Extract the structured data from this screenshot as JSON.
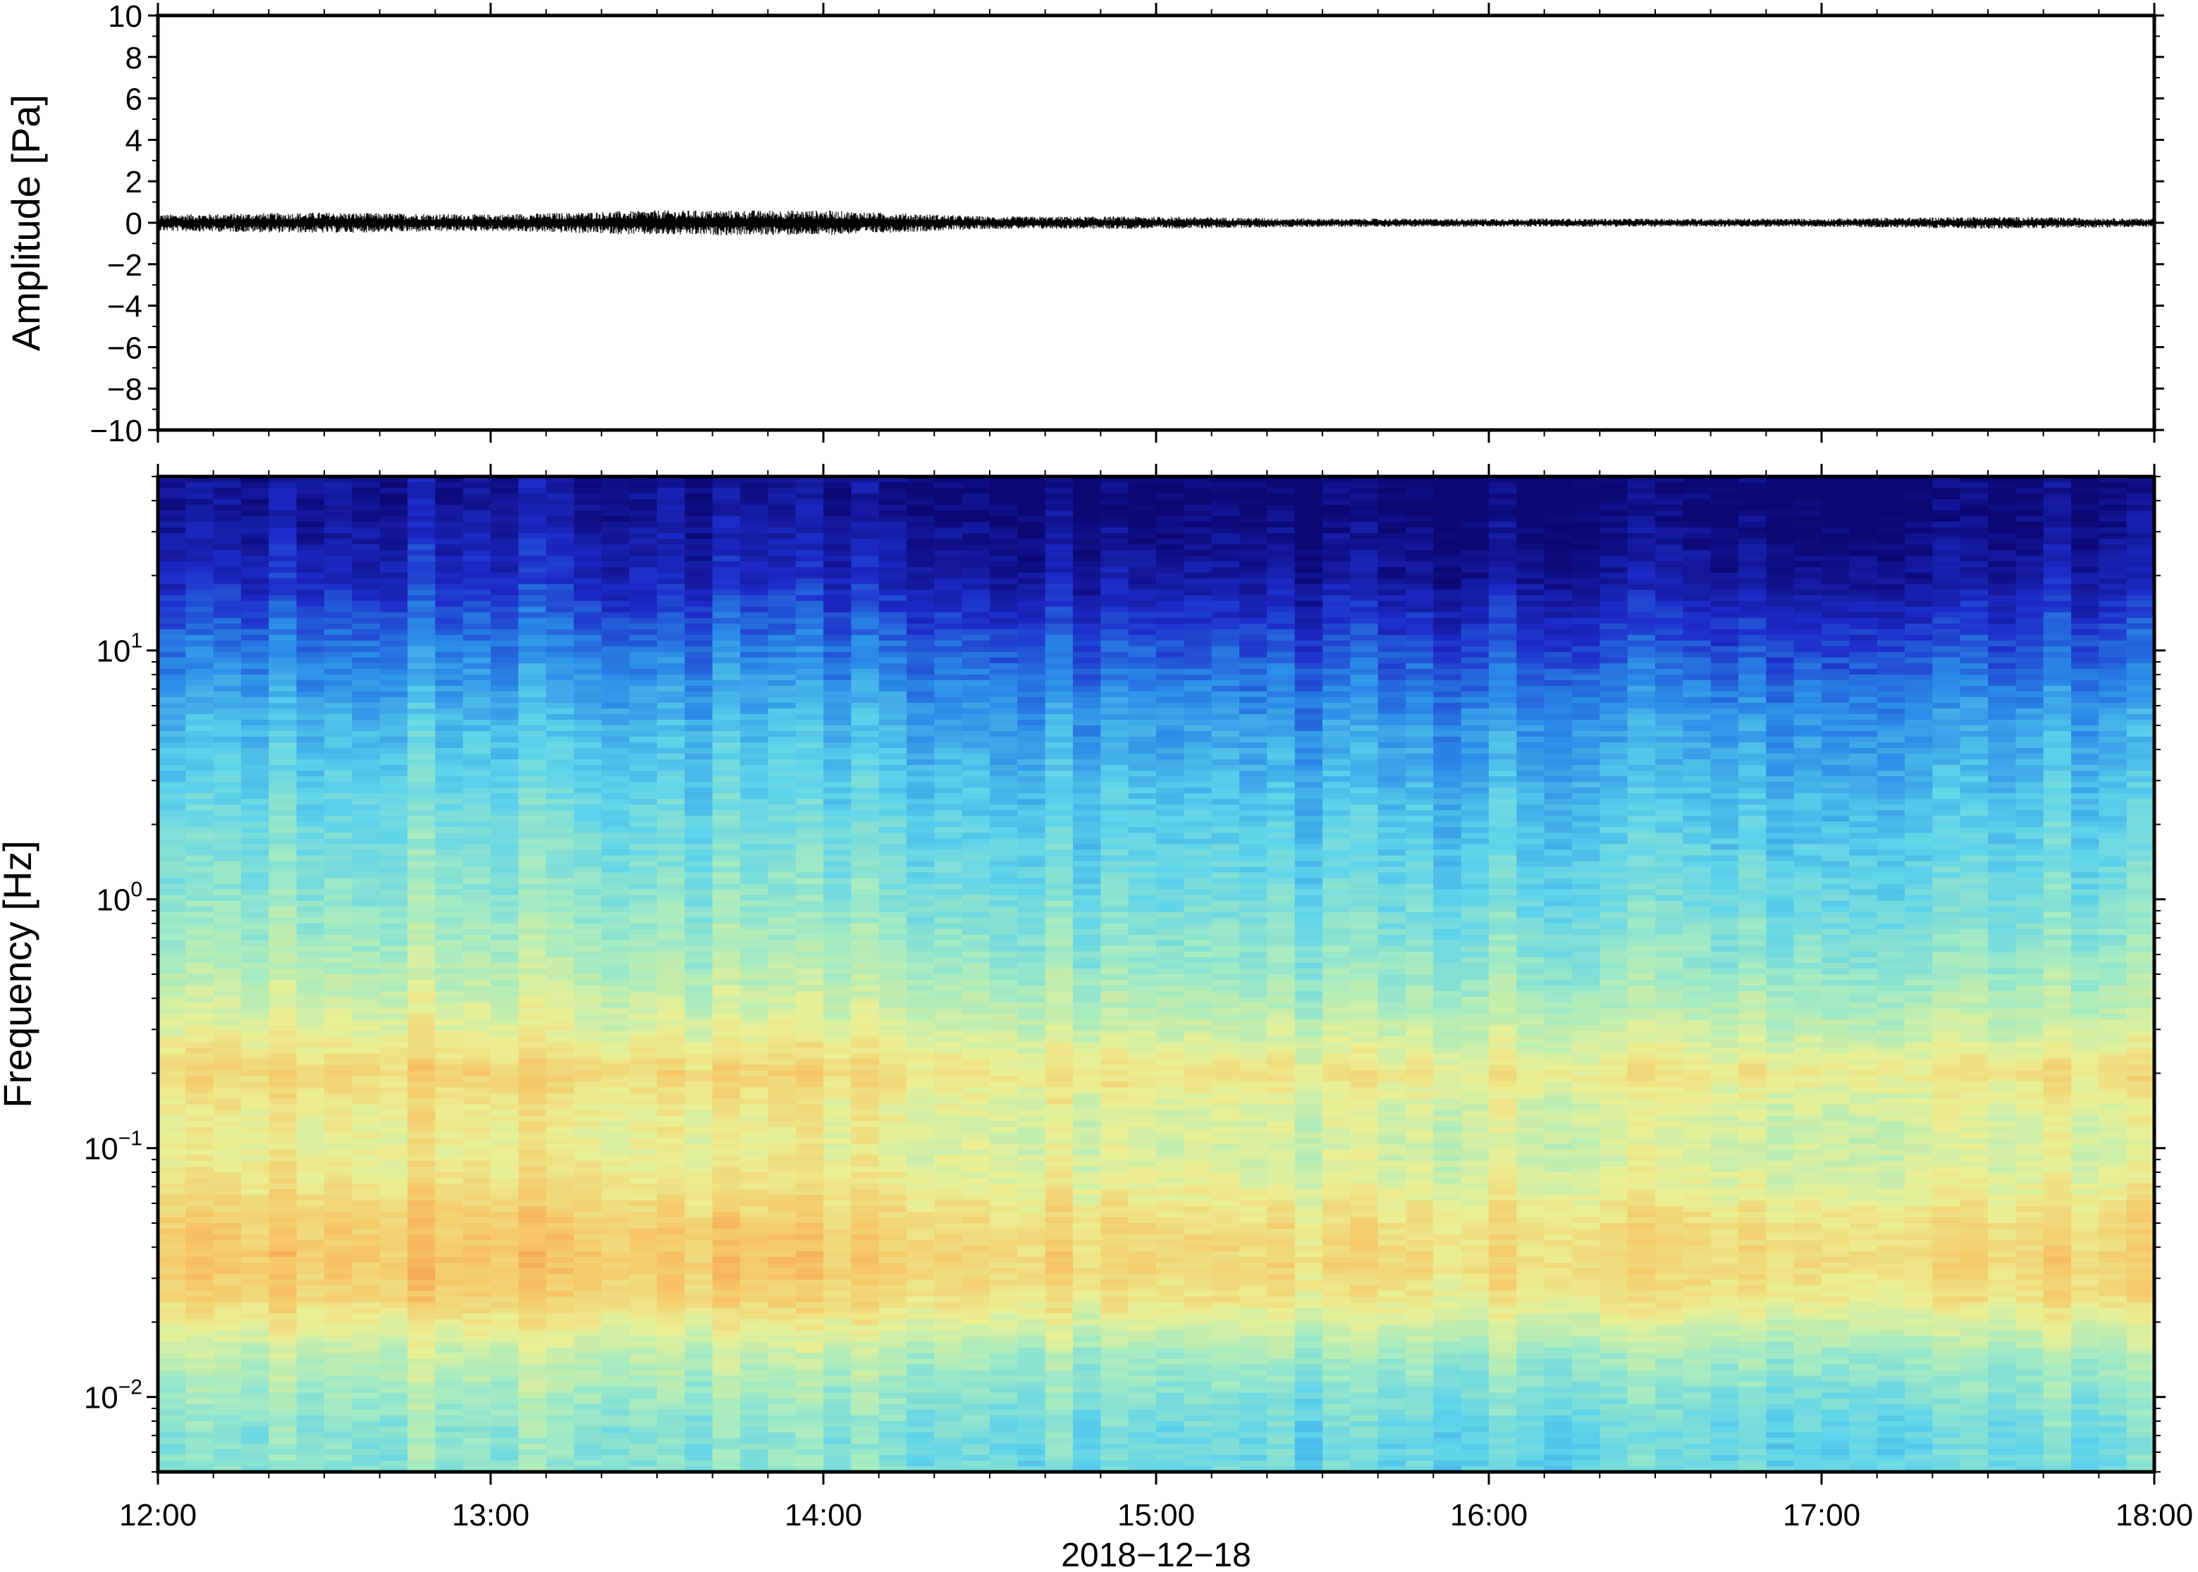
{
  "chart_data": [
    {
      "type": "line",
      "ylabel": "Amplitude [Pa]",
      "ylim": [
        -10,
        10
      ],
      "y_ticks": [
        "10",
        "8",
        "6",
        "4",
        "2",
        "0",
        "−2",
        "−4",
        "−6",
        "−8",
        "−10"
      ],
      "y_tick_values": [
        10,
        8,
        6,
        4,
        2,
        0,
        -2,
        -4,
        -6,
        -8,
        -10
      ],
      "xlim": [
        "2018-12-18 12:00",
        "2018-12-18 18:00"
      ],
      "series": [
        {
          "x": [
            "2018-12-18 12:00",
            "2018-12-18 12:30",
            "2018-12-18 13:00",
            "2018-12-18 13:30",
            "2018-12-18 14:00",
            "2018-12-18 14:30",
            "2018-12-18 15:00",
            "2018-12-18 15:30",
            "2018-12-18 16:00",
            "2018-12-18 16:30",
            "2018-12-18 17:00",
            "2018-12-18 17:30",
            "2018-12-18 18:00"
          ],
          "y_envelope": [
            0.4,
            0.5,
            0.4,
            0.6,
            0.6,
            0.3,
            0.3,
            0.2,
            0.2,
            0.2,
            0.2,
            0.3,
            0.2
          ],
          "color": "#000000"
        }
      ]
    },
    {
      "type": "heatmap",
      "ylabel": "Frequency [Hz]",
      "yscale": "log",
      "ylim": [
        0.005,
        50
      ],
      "y_ticks": [
        {
          "base": "10",
          "exp": "1",
          "value": 10
        },
        {
          "base": "10",
          "exp": "0",
          "value": 1
        },
        {
          "base": "10",
          "exp": "−1",
          "value": 0.1
        },
        {
          "base": "10",
          "exp": "−2",
          "value": 0.01
        }
      ],
      "x_ticks": [
        "12:00",
        "13:00",
        "14:00",
        "15:00",
        "16:00",
        "17:00",
        "18:00"
      ],
      "xlim": [
        "2018-12-18 12:00",
        "2018-12-18 18:00"
      ],
      "xlabel": "2018−12−18",
      "colormap": [
        "#0b0874",
        "#1d2bc9",
        "#2b8fe8",
        "#5fd4ea",
        "#a9ecc0",
        "#eaef93",
        "#f6c868",
        "#f5954a",
        "#e4533a"
      ],
      "rows_hz": [
        40,
        20,
        10,
        5,
        2,
        1,
        0.5,
        0.3,
        0.2,
        0.15,
        0.1,
        0.07,
        0.05,
        0.035,
        0.025,
        0.015,
        0.01,
        0.007
      ],
      "row_levels": [
        0.02,
        0.08,
        0.2,
        0.3,
        0.38,
        0.43,
        0.5,
        0.58,
        0.68,
        0.62,
        0.6,
        0.64,
        0.7,
        0.72,
        0.68,
        0.52,
        0.46,
        0.42
      ],
      "time_level_offsets": {
        "times": [
          "12:00",
          "12:30",
          "13:00",
          "13:30",
          "14:00",
          "14:30",
          "15:00",
          "15:30",
          "16:00",
          "16:30",
          "17:00",
          "17:30",
          "18:00"
        ],
        "offset": [
          0.04,
          0.05,
          0.04,
          0.03,
          0.02,
          0.0,
          -0.02,
          -0.03,
          -0.03,
          -0.02,
          -0.02,
          0.0,
          -0.01
        ]
      }
    }
  ]
}
